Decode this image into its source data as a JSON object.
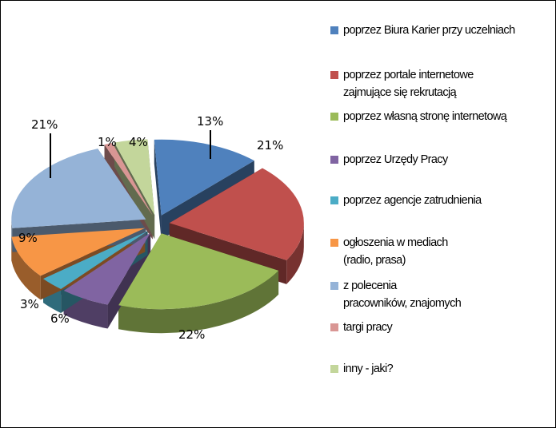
{
  "chart_data": {
    "type": "pie",
    "title": "",
    "legend_position": "right",
    "slices": [
      {
        "label": "poprzez Biura Karier przy uczelniach",
        "value": 13,
        "display": "13%",
        "color": "#4F81BD"
      },
      {
        "label": "poprzez portale internetowe\nzajmujące się rekrutacją",
        "value": 21,
        "display": "21%",
        "color": "#C0504D"
      },
      {
        "label": "poprzez własną stronę internetową",
        "value": 22,
        "display": "22%",
        "color": "#9BBB59"
      },
      {
        "label": "poprzez Urzędy Pracy",
        "value": 6,
        "display": "6%",
        "color": "#8064A2"
      },
      {
        "label": "poprzez agencje zatrudnienia",
        "value": 3,
        "display": "3%",
        "color": "#4BACC6"
      },
      {
        "label": "ogłoszenia w mediach\n(radio, prasa)",
        "value": 9,
        "display": "9%",
        "color": "#F79646"
      },
      {
        "label": "z polecenia\npracowników, znajomych",
        "value": 21,
        "display": "21%",
        "color": "#95B3D7"
      },
      {
        "label": "targi pracy",
        "value": 1,
        "display": "1%",
        "color": "#D99694"
      },
      {
        "label": "inny - jaki?",
        "value": 4,
        "display": "4%",
        "color": "#C3D69B"
      }
    ]
  }
}
